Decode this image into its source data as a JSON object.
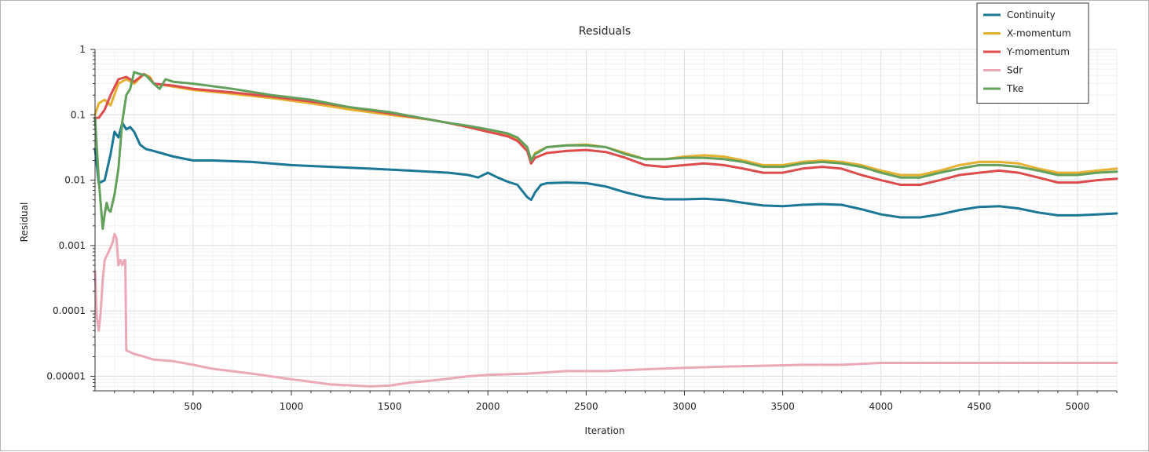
{
  "chart_data": {
    "type": "line",
    "title": "Residuals",
    "xlabel": "Iteration",
    "ylabel": "Residual",
    "y_scale": "log",
    "xlim": [
      1,
      5200
    ],
    "ylim": [
      6e-06,
      1
    ],
    "x_ticks": [
      500,
      1000,
      1500,
      2000,
      2500,
      3000,
      3500,
      4000,
      4500,
      5000
    ],
    "x_tick_labels": [
      "500",
      "1000",
      "1500",
      "2000",
      "2500",
      "3000",
      "3500",
      "4000",
      "4500",
      "5000"
    ],
    "y_ticks": [
      1,
      0.1,
      0.01,
      0.001,
      0.0001,
      1e-05
    ],
    "y_tick_labels": [
      "1",
      "0.1",
      "0.01",
      "0.001",
      "0.0001",
      "0.00001"
    ],
    "grid": true,
    "legend_position": "top-right",
    "series": [
      {
        "name": "Continuity",
        "color": "#1a7796",
        "x": [
          1,
          20,
          50,
          80,
          100,
          120,
          140,
          160,
          180,
          200,
          230,
          260,
          300,
          400,
          500,
          600,
          800,
          1000,
          1200,
          1400,
          1600,
          1800,
          1900,
          1950,
          2000,
          2050,
          2100,
          2150,
          2200,
          2220,
          2240,
          2270,
          2300,
          2400,
          2500,
          2600,
          2700,
          2800,
          2900,
          3000,
          3100,
          3200,
          3300,
          3400,
          3500,
          3600,
          3700,
          3800,
          3900,
          4000,
          4100,
          4200,
          4300,
          4400,
          4500,
          4600,
          4700,
          4800,
          4900,
          5000,
          5100,
          5200
        ],
        "y": [
          0.03,
          0.009,
          0.01,
          0.025,
          0.055,
          0.045,
          0.075,
          0.06,
          0.065,
          0.055,
          0.035,
          0.03,
          0.028,
          0.023,
          0.02,
          0.02,
          0.019,
          0.017,
          0.016,
          0.015,
          0.014,
          0.013,
          0.012,
          0.011,
          0.013,
          0.011,
          0.0095,
          0.0085,
          0.0055,
          0.005,
          0.0065,
          0.0085,
          0.009,
          0.0092,
          0.009,
          0.008,
          0.0065,
          0.0055,
          0.0051,
          0.0051,
          0.0052,
          0.005,
          0.0045,
          0.0041,
          0.004,
          0.0042,
          0.0043,
          0.0042,
          0.0036,
          0.003,
          0.0027,
          0.0027,
          0.003,
          0.0035,
          0.0039,
          0.004,
          0.0037,
          0.0032,
          0.0029,
          0.0029,
          0.003,
          0.0031
        ]
      },
      {
        "name": "X-momentum",
        "color": "#e6b030",
        "x": [
          1,
          20,
          50,
          80,
          120,
          160,
          200,
          250,
          280,
          300,
          400,
          500,
          700,
          900,
          1100,
          1300,
          1500,
          1700,
          1800,
          1900,
          2000,
          2100,
          2150,
          2200,
          2220,
          2240,
          2300,
          2400,
          2500,
          2600,
          2700,
          2800,
          2900,
          3000,
          3100,
          3200,
          3300,
          3400,
          3500,
          3600,
          3700,
          3800,
          3900,
          4000,
          4100,
          4200,
          4300,
          4400,
          4500,
          4600,
          4700,
          4800,
          4900,
          5000,
          5100,
          5200
        ],
        "y": [
          0.1,
          0.15,
          0.17,
          0.14,
          0.3,
          0.35,
          0.3,
          0.42,
          0.38,
          0.3,
          0.27,
          0.24,
          0.21,
          0.18,
          0.15,
          0.12,
          0.1,
          0.085,
          0.075,
          0.065,
          0.055,
          0.048,
          0.043,
          0.032,
          0.02,
          0.026,
          0.032,
          0.034,
          0.035,
          0.032,
          0.026,
          0.021,
          0.021,
          0.023,
          0.024,
          0.023,
          0.02,
          0.017,
          0.017,
          0.019,
          0.02,
          0.019,
          0.017,
          0.014,
          0.012,
          0.012,
          0.014,
          0.017,
          0.019,
          0.019,
          0.018,
          0.015,
          0.013,
          0.013,
          0.014,
          0.015
        ]
      },
      {
        "name": "Y-momentum",
        "color": "#dd4c4c",
        "x": [
          1,
          20,
          50,
          80,
          120,
          160,
          200,
          250,
          280,
          300,
          400,
          500,
          700,
          900,
          1100,
          1300,
          1500,
          1700,
          1800,
          1900,
          2000,
          2100,
          2150,
          2200,
          2220,
          2240,
          2300,
          2400,
          2500,
          2600,
          2700,
          2800,
          2900,
          3000,
          3100,
          3200,
          3300,
          3400,
          3500,
          3600,
          3700,
          3800,
          3900,
          4000,
          4100,
          4200,
          4300,
          4400,
          4500,
          4600,
          4700,
          4800,
          4900,
          5000,
          5100,
          5200
        ],
        "y": [
          0.09,
          0.09,
          0.12,
          0.2,
          0.35,
          0.38,
          0.32,
          0.42,
          0.36,
          0.3,
          0.28,
          0.25,
          0.22,
          0.19,
          0.16,
          0.13,
          0.105,
          0.085,
          0.075,
          0.065,
          0.055,
          0.047,
          0.04,
          0.028,
          0.018,
          0.022,
          0.026,
          0.028,
          0.029,
          0.027,
          0.022,
          0.017,
          0.016,
          0.017,
          0.018,
          0.017,
          0.015,
          0.013,
          0.013,
          0.015,
          0.016,
          0.015,
          0.012,
          0.01,
          0.0085,
          0.0085,
          0.01,
          0.012,
          0.013,
          0.014,
          0.013,
          0.011,
          0.0092,
          0.0092,
          0.01,
          0.0105
        ]
      },
      {
        "name": "Sdr",
        "color": "#eba8b7",
        "x": [
          1,
          10,
          20,
          30,
          40,
          50,
          70,
          90,
          100,
          110,
          120,
          130,
          140,
          150,
          155,
          160,
          170,
          200,
          250,
          300,
          400,
          500,
          600,
          800,
          1000,
          1200,
          1400,
          1500,
          1600,
          1700,
          1800,
          1900,
          2000,
          2200,
          2400,
          2600,
          2800,
          3000,
          3200,
          3400,
          3600,
          3800,
          4000,
          4200,
          4400,
          4600,
          4800,
          5000,
          5200
        ],
        "y": [
          0.0004,
          8e-05,
          5e-05,
          0.0001,
          0.0003,
          0.0006,
          0.0008,
          0.0011,
          0.0015,
          0.0013,
          0.0005,
          0.0006,
          0.0005,
          0.0006,
          0.0006,
          2.5e-05,
          2.4e-05,
          2.2e-05,
          2e-05,
          1.8e-05,
          1.7e-05,
          1.5e-05,
          1.3e-05,
          1.1e-05,
          9e-06,
          7.5e-06,
          7e-06,
          7.2e-06,
          8e-06,
          8.5e-06,
          9.2e-06,
          1e-05,
          1.05e-05,
          1.1e-05,
          1.2e-05,
          1.2e-05,
          1.28e-05,
          1.35e-05,
          1.4e-05,
          1.45e-05,
          1.5e-05,
          1.5e-05,
          1.6e-05,
          1.6e-05,
          1.6e-05,
          1.6e-05,
          1.6e-05,
          1.6e-05,
          1.6e-05
        ]
      },
      {
        "name": "Tke",
        "color": "#63a05c",
        "x": [
          1,
          20,
          40,
          50,
          60,
          70,
          80,
          100,
          120,
          140,
          160,
          180,
          200,
          230,
          260,
          300,
          330,
          360,
          400,
          500,
          700,
          900,
          1100,
          1300,
          1500,
          1700,
          1800,
          1900,
          2000,
          2100,
          2150,
          2200,
          2220,
          2240,
          2300,
          2400,
          2500,
          2600,
          2700,
          2800,
          2900,
          3000,
          3100,
          3200,
          3300,
          3400,
          3500,
          3600,
          3700,
          3800,
          3900,
          4000,
          4100,
          4200,
          4300,
          4400,
          4500,
          4600,
          4700,
          4800,
          4900,
          5000,
          5100,
          5200
        ],
        "y": [
          0.09,
          0.01,
          0.0018,
          0.003,
          0.0045,
          0.0035,
          0.0033,
          0.006,
          0.015,
          0.08,
          0.2,
          0.25,
          0.45,
          0.42,
          0.4,
          0.3,
          0.25,
          0.35,
          0.32,
          0.3,
          0.25,
          0.2,
          0.17,
          0.13,
          0.11,
          0.085,
          0.075,
          0.068,
          0.06,
          0.052,
          0.045,
          0.032,
          0.02,
          0.025,
          0.032,
          0.034,
          0.034,
          0.032,
          0.025,
          0.021,
          0.021,
          0.022,
          0.022,
          0.021,
          0.019,
          0.016,
          0.016,
          0.018,
          0.019,
          0.018,
          0.016,
          0.013,
          0.011,
          0.011,
          0.013,
          0.015,
          0.017,
          0.017,
          0.016,
          0.014,
          0.012,
          0.012,
          0.013,
          0.0135
        ]
      }
    ]
  }
}
